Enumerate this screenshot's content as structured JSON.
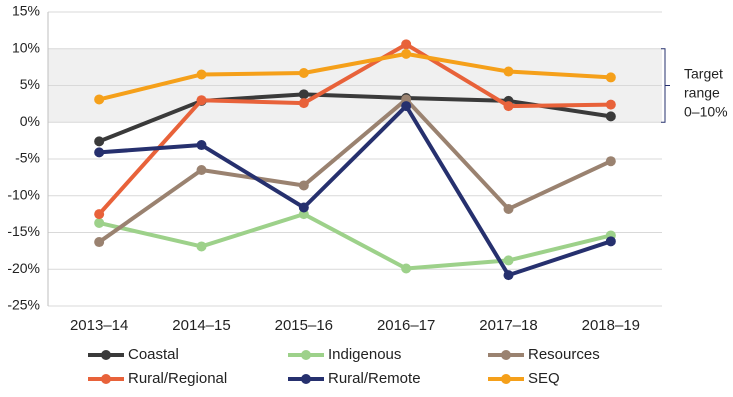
{
  "chart_data": {
    "type": "line",
    "categories": [
      "2013–14",
      "2014–15",
      "2015–16",
      "2016–17",
      "2017–18",
      "2018–19"
    ],
    "series": [
      {
        "name": "Coastal",
        "color": "#3a3a3a",
        "values": [
          -2.6,
          2.9,
          3.8,
          3.3,
          2.9,
          0.8
        ]
      },
      {
        "name": "Indigenous",
        "color": "#9dd18a",
        "values": [
          -13.7,
          -16.9,
          -12.5,
          -19.9,
          -18.8,
          -15.4
        ]
      },
      {
        "name": "Resources",
        "color": "#9a8270",
        "values": [
          -16.3,
          -6.5,
          -8.6,
          3.1,
          -11.8,
          -5.3
        ]
      },
      {
        "name": "Rural/Regional",
        "color": "#e8623a",
        "values": [
          -12.5,
          3.0,
          2.6,
          10.6,
          2.2,
          2.4
        ]
      },
      {
        "name": "Rural/Remote",
        "color": "#26306e",
        "values": [
          -4.1,
          -3.1,
          -11.6,
          2.2,
          -20.8,
          -16.2
        ]
      },
      {
        "name": "SEQ",
        "color": "#f5a01a",
        "values": [
          3.1,
          6.5,
          6.7,
          9.3,
          6.9,
          6.1
        ]
      }
    ],
    "ylim": [
      -25,
      15
    ],
    "yticks": [
      {
        "value": -25,
        "label": "-25%"
      },
      {
        "value": -20,
        "label": "-20%"
      },
      {
        "value": -15,
        "label": "-15%"
      },
      {
        "value": -10,
        "label": "-10%"
      },
      {
        "value": -5,
        "label": "-5%"
      },
      {
        "value": 0,
        "label": "0%"
      },
      {
        "value": 5,
        "label": "5%"
      },
      {
        "value": 10,
        "label": "10%"
      },
      {
        "value": 15,
        "label": "15%"
      }
    ],
    "grid": true,
    "target_range": [
      0,
      10
    ],
    "annotation": [
      "Target",
      "range",
      "0–10%"
    ],
    "legend": "bottom"
  }
}
